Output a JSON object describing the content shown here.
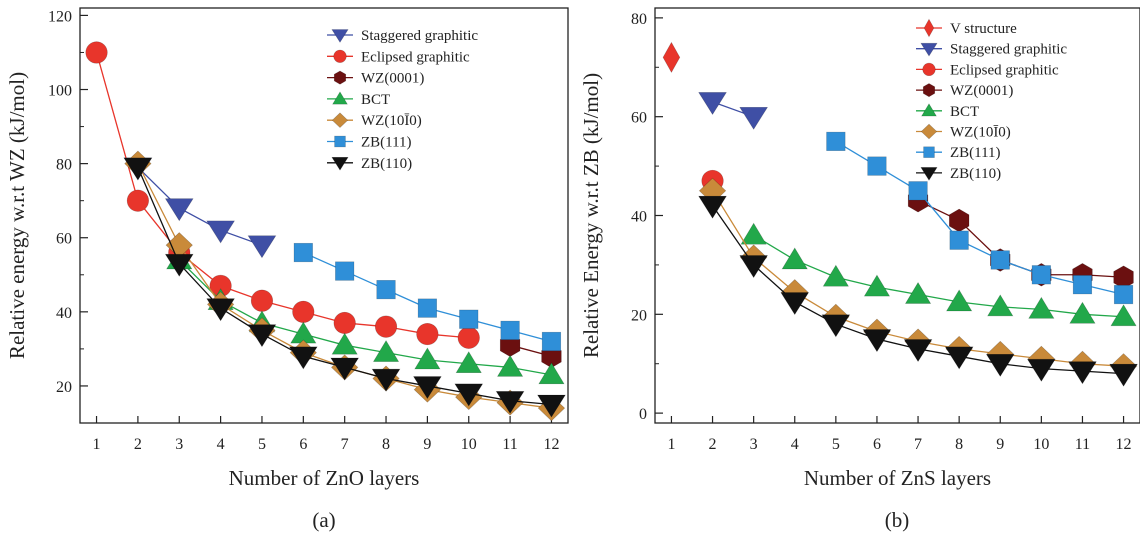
{
  "chart_data": [
    {
      "type": "line",
      "panel_label": "(a)",
      "xlabel": "Number of ZnO layers",
      "ylabel": "Relative energy w.r.t WZ (kJ/mol)",
      "xlim": [
        0.6,
        12.4
      ],
      "ylim": [
        10,
        122
      ],
      "xticks": [
        "1",
        "2",
        "3",
        "4",
        "5",
        "6",
        "7",
        "8",
        "9",
        "10",
        "11",
        "12"
      ],
      "yticks": [
        "20",
        "40",
        "60",
        "80",
        "100",
        "120"
      ],
      "legend_position": "top-right",
      "series": [
        {
          "name": "Staggered graphitic",
          "marker": "triangle-down",
          "color": "#3f4fa5",
          "points": [
            [
              2,
              79
            ],
            [
              3,
              68
            ],
            [
              4,
              62
            ],
            [
              5,
              58
            ]
          ]
        },
        {
          "name": "Eclipsed graphitic",
          "marker": "circle",
          "color": "#e8352b",
          "points": [
            [
              1,
              110
            ],
            [
              2,
              70
            ],
            [
              3,
              56
            ],
            [
              4,
              47
            ],
            [
              5,
              43
            ],
            [
              6,
              40
            ],
            [
              7,
              37
            ],
            [
              8,
              36
            ],
            [
              9,
              34
            ],
            [
              10,
              33
            ]
          ]
        },
        {
          "name": "WZ(0001)",
          "marker": "hexagon",
          "color": "#6b1010",
          "points": [
            [
              11,
              31
            ],
            [
              12,
              28
            ]
          ]
        },
        {
          "name": "BCT",
          "marker": "triangle-up",
          "color": "#22a84a",
          "points": [
            [
              3,
              54
            ],
            [
              4,
              43
            ],
            [
              5,
              37
            ],
            [
              6,
              34
            ],
            [
              7,
              31
            ],
            [
              8,
              29
            ],
            [
              9,
              27
            ],
            [
              10,
              26
            ],
            [
              11,
              25
            ],
            [
              12,
              23
            ]
          ]
        },
        {
          "name": "WZ(10Ī0)",
          "marker": "diamond",
          "color": "#c98a3a",
          "points": [
            [
              2,
              80
            ],
            [
              3,
              58
            ],
            [
              4,
              42
            ],
            [
              5,
              35
            ],
            [
              6,
              29
            ],
            [
              7,
              25
            ],
            [
              8,
              22
            ],
            [
              9,
              19
            ],
            [
              10,
              17
            ],
            [
              11,
              15.5
            ],
            [
              12,
              14
            ]
          ]
        },
        {
          "name": "ZB(111)",
          "marker": "square",
          "color": "#2f8fd8",
          "points": [
            [
              6,
              56
            ],
            [
              7,
              51
            ],
            [
              8,
              46
            ],
            [
              9,
              41
            ],
            [
              10,
              38
            ],
            [
              11,
              35
            ],
            [
              12,
              32
            ]
          ]
        },
        {
          "name": "ZB(110)",
          "marker": "triangle-down",
          "color": "#111111",
          "points": [
            [
              2,
              79
            ],
            [
              3,
              53
            ],
            [
              4,
              41
            ],
            [
              5,
              34
            ],
            [
              6,
              28
            ],
            [
              7,
              25
            ],
            [
              8,
              22
            ],
            [
              9,
              20
            ],
            [
              10,
              18
            ],
            [
              11,
              16
            ],
            [
              12,
              15
            ]
          ]
        }
      ]
    },
    {
      "type": "line",
      "panel_label": "(b)",
      "xlabel": "Number of ZnS layers",
      "ylabel": "Relative Energy w.r.t ZB (kJ/mol)",
      "xlim": [
        0.6,
        12.4
      ],
      "ylim": [
        -2,
        82
      ],
      "xticks": [
        "1",
        "2",
        "3",
        "4",
        "5",
        "6",
        "7",
        "8",
        "9",
        "10",
        "11",
        "12"
      ],
      "yticks": [
        "0",
        "20",
        "40",
        "60",
        "80"
      ],
      "legend_position": "top-right",
      "series": [
        {
          "name": "V structure",
          "marker": "diamond-tall",
          "color": "#e8352b",
          "points": [
            [
              1,
              72
            ]
          ]
        },
        {
          "name": "Staggered graphitic",
          "marker": "triangle-down",
          "color": "#3f4fa5",
          "points": [
            [
              2,
              63
            ],
            [
              3,
              60
            ]
          ]
        },
        {
          "name": "Eclipsed graphitic",
          "marker": "circle",
          "color": "#e8352b",
          "points": [
            [
              2,
              47
            ]
          ]
        },
        {
          "name": "WZ(0001)",
          "marker": "hexagon",
          "color": "#6b1010",
          "points": [
            [
              7,
              43
            ],
            [
              8,
              39
            ],
            [
              9,
              31
            ],
            [
              10,
              28
            ],
            [
              11,
              28
            ],
            [
              12,
              27.5
            ]
          ]
        },
        {
          "name": "BCT",
          "marker": "triangle-up",
          "color": "#22a84a",
          "points": [
            [
              3,
              36
            ],
            [
              4,
              31
            ],
            [
              5,
              27.5
            ],
            [
              6,
              25.5
            ],
            [
              7,
              24
            ],
            [
              8,
              22.5
            ],
            [
              9,
              21.5
            ],
            [
              10,
              21
            ],
            [
              11,
              20
            ],
            [
              12,
              19.5
            ]
          ]
        },
        {
          "name": "WZ(10Ī0)",
          "marker": "diamond",
          "color": "#c98a3a",
          "points": [
            [
              2,
              45
            ],
            [
              3,
              31.5
            ],
            [
              4,
              24.5
            ],
            [
              5,
              19.5
            ],
            [
              6,
              16.5
            ],
            [
              7,
              14.5
            ],
            [
              8,
              13
            ],
            [
              9,
              12
            ],
            [
              10,
              11
            ],
            [
              11,
              10
            ],
            [
              12,
              9.5
            ]
          ]
        },
        {
          "name": "ZB(111)",
          "marker": "square",
          "color": "#2f8fd8",
          "points": [
            [
              5,
              55
            ],
            [
              6,
              50
            ],
            [
              7,
              45
            ],
            [
              8,
              35
            ],
            [
              9,
              31
            ],
            [
              10,
              28
            ],
            [
              11,
              26
            ],
            [
              12,
              24
            ]
          ]
        },
        {
          "name": "ZB(110)",
          "marker": "triangle-down",
          "color": "#111111",
          "points": [
            [
              2,
              42
            ],
            [
              3,
              30
            ],
            [
              4,
              22.5
            ],
            [
              5,
              18
            ],
            [
              6,
              15
            ],
            [
              7,
              13
            ],
            [
              8,
              11.5
            ],
            [
              9,
              10
            ],
            [
              10,
              9
            ],
            [
              11,
              8.5
            ],
            [
              12,
              8
            ]
          ]
        }
      ]
    }
  ]
}
